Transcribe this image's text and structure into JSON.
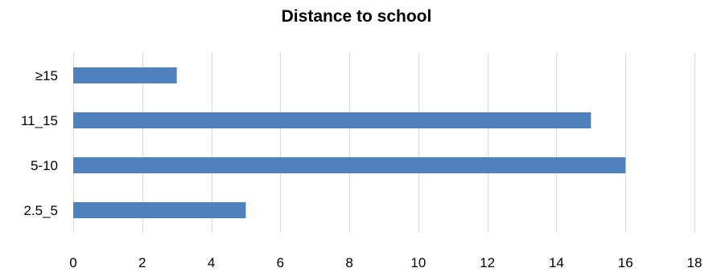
{
  "chart_data": {
    "type": "bar",
    "orientation": "horizontal",
    "title": "Distance to school",
    "xlabel": "",
    "ylabel": "",
    "categories": [
      "≥15",
      "11_15",
      "5-10",
      "2.5_5"
    ],
    "values": [
      3,
      15,
      16,
      5
    ],
    "xlim": [
      0,
      18
    ],
    "xticks": [
      0,
      2,
      4,
      6,
      8,
      10,
      12,
      14,
      16,
      18
    ],
    "grid": true,
    "legend": "none",
    "bar_color": "#4f81bd",
    "grid_color": "#d9d9d9"
  }
}
